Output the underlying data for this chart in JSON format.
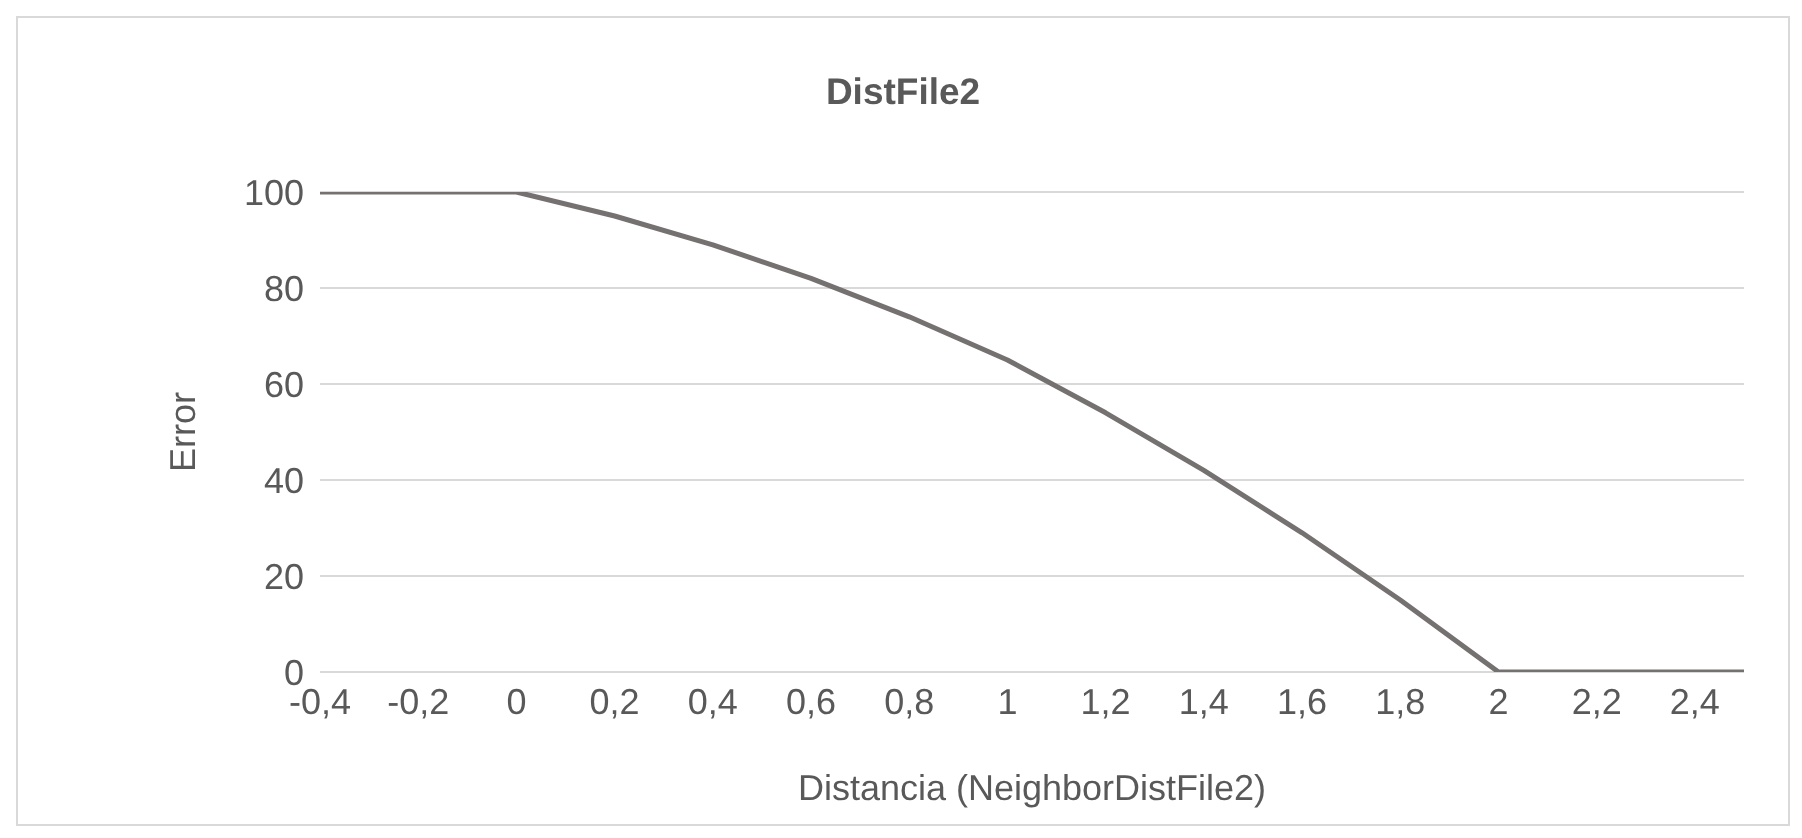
{
  "chart_data": {
    "type": "line",
    "title": "DistFile2",
    "xlabel": "Distancia (NeighborDistFile2)",
    "ylabel": "Error",
    "x": [
      -0.4,
      -0.2,
      0,
      0.2,
      0.4,
      0.6,
      0.8,
      1,
      1.2,
      1.4,
      1.6,
      1.8,
      2,
      2.2,
      2.4,
      2.5
    ],
    "series": [
      {
        "color": "#767171",
        "values": [
          100,
          100,
          100,
          95,
          89,
          82,
          74,
          65,
          54,
          42,
          29,
          15,
          0,
          0,
          0,
          0
        ]
      }
    ],
    "xlim": [
      -0.4,
      2.5
    ],
    "xticks": [
      {
        "value": -0.4,
        "label": "-0,4"
      },
      {
        "value": -0.2,
        "label": "-0,2"
      },
      0,
      {
        "value": 0.2,
        "label": "0,2"
      },
      {
        "value": 0.4,
        "label": "0,4"
      },
      {
        "value": 0.6,
        "label": "0,6"
      },
      {
        "value": 0.8,
        "label": "0,8"
      },
      1,
      {
        "value": 1.2,
        "label": "1,2"
      },
      {
        "value": 1.4,
        "label": "1,4"
      },
      {
        "value": 1.6,
        "label": "1,6"
      },
      {
        "value": 1.8,
        "label": "1,8"
      },
      2,
      {
        "value": 2.2,
        "label": "2,2"
      },
      {
        "value": 2.4,
        "label": "2,4"
      }
    ],
    "ylim": [
      0,
      100
    ],
    "yticks": [
      0,
      20,
      40,
      60,
      80,
      100
    ],
    "grid": "y",
    "legend": false,
    "marker": "none",
    "line_style": "solid"
  }
}
